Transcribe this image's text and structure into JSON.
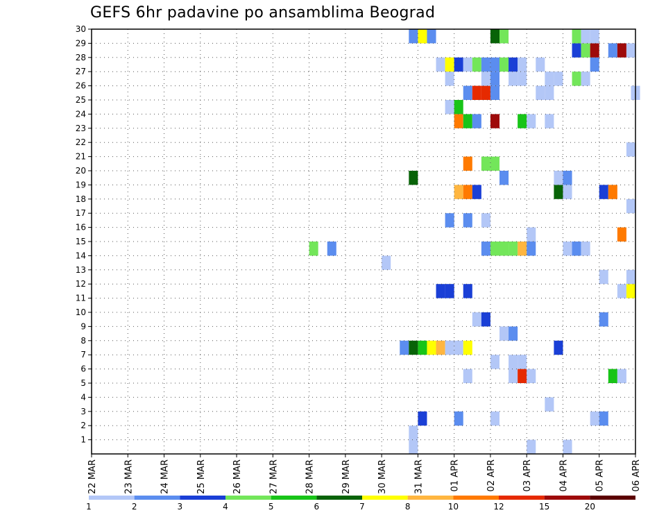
{
  "chart_data": {
    "type": "heatmap",
    "title": "GEFS 6hr padavine po ansamblima Beograd",
    "xlabel": "",
    "ylabel": "",
    "x_ticks": [
      "22 MAR",
      "23 MAR",
      "24 MAR",
      "25 MAR",
      "26 MAR",
      "27 MAR",
      "28 MAR",
      "29 MAR",
      "30 MAR",
      "31 MAR",
      "01 APR",
      "02 APR",
      "03 APR",
      "04 APR",
      "05 APR",
      "06 APR"
    ],
    "xlim": [
      0,
      15
    ],
    "y_ticks": [
      1,
      2,
      3,
      4,
      5,
      6,
      7,
      8,
      9,
      10,
      11,
      12,
      13,
      14,
      15,
      16,
      17,
      18,
      19,
      20,
      21,
      22,
      23,
      24,
      25,
      26,
      27,
      28,
      29,
      30
    ],
    "ylim": [
      0,
      30
    ],
    "grid": true,
    "legend_position": "bottom",
    "colorbar": {
      "labels": [
        "1",
        "2",
        "3",
        "4",
        "5",
        "6",
        "7",
        "8",
        "10",
        "12",
        "15",
        "20"
      ],
      "colors": [
        "#b3c7f7",
        "#5b8def",
        "#1a3fd6",
        "#73e65a",
        "#18c418",
        "#086308",
        "#ffff00",
        "#ffb640",
        "#ff7a00",
        "#e62a00",
        "#9e0a0a",
        "#5c0000"
      ]
    },
    "cells": [
      {
        "x": 8.75,
        "y": 0,
        "bin": 0
      },
      {
        "x": 12.0,
        "y": 0,
        "bin": 0
      },
      {
        "x": 13.0,
        "y": 0,
        "bin": 0
      },
      {
        "x": 13.75,
        "y": 2,
        "bin": 0
      },
      {
        "x": 8.75,
        "y": 1,
        "bin": 0
      },
      {
        "x": 9.0,
        "y": 2,
        "bin": 2
      },
      {
        "x": 10.0,
        "y": 2,
        "bin": 1
      },
      {
        "x": 11.0,
        "y": 2,
        "bin": 0
      },
      {
        "x": 14.0,
        "y": 2,
        "bin": 1
      },
      {
        "x": 12.5,
        "y": 3,
        "bin": 0
      },
      {
        "x": 10.25,
        "y": 5,
        "bin": 0
      },
      {
        "x": 11.5,
        "y": 5,
        "bin": 0
      },
      {
        "x": 11.75,
        "y": 5,
        "bin": 9
      },
      {
        "x": 12.0,
        "y": 5,
        "bin": 0
      },
      {
        "x": 14.25,
        "y": 5,
        "bin": 4
      },
      {
        "x": 14.5,
        "y": 5,
        "bin": 0
      },
      {
        "x": 11.0,
        "y": 6,
        "bin": 0
      },
      {
        "x": 11.5,
        "y": 6,
        "bin": 0
      },
      {
        "x": 11.75,
        "y": 6,
        "bin": 0
      },
      {
        "x": 8.5,
        "y": 7,
        "bin": 1
      },
      {
        "x": 8.75,
        "y": 7,
        "bin": 5
      },
      {
        "x": 9.0,
        "y": 7,
        "bin": 4
      },
      {
        "x": 9.25,
        "y": 7,
        "bin": 6
      },
      {
        "x": 9.5,
        "y": 7,
        "bin": 7
      },
      {
        "x": 9.75,
        "y": 7,
        "bin": 0
      },
      {
        "x": 10.0,
        "y": 7,
        "bin": 0
      },
      {
        "x": 10.25,
        "y": 7,
        "bin": 6
      },
      {
        "x": 12.75,
        "y": 7,
        "bin": 2
      },
      {
        "x": 11.25,
        "y": 8,
        "bin": 0
      },
      {
        "x": 11.5,
        "y": 8,
        "bin": 1
      },
      {
        "x": 10.5,
        "y": 9,
        "bin": 0
      },
      {
        "x": 10.75,
        "y": 9,
        "bin": 2
      },
      {
        "x": 14.0,
        "y": 9,
        "bin": 1
      },
      {
        "x": 9.5,
        "y": 11,
        "bin": 2
      },
      {
        "x": 9.75,
        "y": 11,
        "bin": 2
      },
      {
        "x": 10.25,
        "y": 11,
        "bin": 2
      },
      {
        "x": 14.5,
        "y": 11,
        "bin": 0
      },
      {
        "x": 14.75,
        "y": 11,
        "bin": 6
      },
      {
        "x": 14.0,
        "y": 12,
        "bin": 0
      },
      {
        "x": 14.75,
        "y": 12,
        "bin": 0
      },
      {
        "x": 8.0,
        "y": 13,
        "bin": 0
      },
      {
        "x": 6.0,
        "y": 14,
        "bin": 3
      },
      {
        "x": 6.5,
        "y": 14,
        "bin": 1
      },
      {
        "x": 10.75,
        "y": 14,
        "bin": 1
      },
      {
        "x": 11.0,
        "y": 14,
        "bin": 3
      },
      {
        "x": 11.25,
        "y": 14,
        "bin": 3
      },
      {
        "x": 11.5,
        "y": 14,
        "bin": 3
      },
      {
        "x": 11.75,
        "y": 14,
        "bin": 7
      },
      {
        "x": 12.0,
        "y": 14,
        "bin": 1
      },
      {
        "x": 13.0,
        "y": 14,
        "bin": 0
      },
      {
        "x": 13.25,
        "y": 14,
        "bin": 1
      },
      {
        "x": 13.5,
        "y": 14,
        "bin": 0
      },
      {
        "x": 12.0,
        "y": 15,
        "bin": 0
      },
      {
        "x": 14.5,
        "y": 15,
        "bin": 8
      },
      {
        "x": 9.75,
        "y": 16,
        "bin": 1
      },
      {
        "x": 10.25,
        "y": 16,
        "bin": 1
      },
      {
        "x": 10.75,
        "y": 16,
        "bin": 0
      },
      {
        "x": 14.75,
        "y": 17,
        "bin": 0
      },
      {
        "x": 10.0,
        "y": 18,
        "bin": 7
      },
      {
        "x": 10.25,
        "y": 18,
        "bin": 8
      },
      {
        "x": 10.5,
        "y": 18,
        "bin": 2
      },
      {
        "x": 12.75,
        "y": 18,
        "bin": 5
      },
      {
        "x": 13.0,
        "y": 18,
        "bin": 0
      },
      {
        "x": 14.0,
        "y": 18,
        "bin": 2
      },
      {
        "x": 14.25,
        "y": 18,
        "bin": 8
      },
      {
        "x": 8.75,
        "y": 19,
        "bin": 5
      },
      {
        "x": 11.25,
        "y": 19,
        "bin": 1
      },
      {
        "x": 12.75,
        "y": 19,
        "bin": 0
      },
      {
        "x": 13.0,
        "y": 19,
        "bin": 1
      },
      {
        "x": 10.25,
        "y": 20,
        "bin": 8
      },
      {
        "x": 10.75,
        "y": 20,
        "bin": 3
      },
      {
        "x": 11.0,
        "y": 20,
        "bin": 3
      },
      {
        "x": 14.75,
        "y": 21,
        "bin": 0
      },
      {
        "x": 10.0,
        "y": 23,
        "bin": 8
      },
      {
        "x": 10.25,
        "y": 23,
        "bin": 4
      },
      {
        "x": 10.5,
        "y": 23,
        "bin": 1
      },
      {
        "x": 11.0,
        "y": 23,
        "bin": 10
      },
      {
        "x": 11.75,
        "y": 23,
        "bin": 4
      },
      {
        "x": 12.0,
        "y": 23,
        "bin": 0
      },
      {
        "x": 12.5,
        "y": 23,
        "bin": 0
      },
      {
        "x": 9.75,
        "y": 24,
        "bin": 0
      },
      {
        "x": 10.0,
        "y": 24,
        "bin": 4
      },
      {
        "x": 10.25,
        "y": 25,
        "bin": 1
      },
      {
        "x": 10.5,
        "y": 25,
        "bin": 9
      },
      {
        "x": 10.75,
        "y": 25,
        "bin": 9
      },
      {
        "x": 11.0,
        "y": 25,
        "bin": 1
      },
      {
        "x": 12.25,
        "y": 25,
        "bin": 0
      },
      {
        "x": 12.5,
        "y": 25,
        "bin": 0
      },
      {
        "x": 14.875,
        "y": 25,
        "bin": 0
      },
      {
        "x": 9.75,
        "y": 26,
        "bin": 0
      },
      {
        "x": 10.75,
        "y": 26,
        "bin": 0
      },
      {
        "x": 11.0,
        "y": 26,
        "bin": 1
      },
      {
        "x": 11.5,
        "y": 26,
        "bin": 0
      },
      {
        "x": 11.75,
        "y": 26,
        "bin": 0
      },
      {
        "x": 12.5,
        "y": 26,
        "bin": 0
      },
      {
        "x": 12.75,
        "y": 26,
        "bin": 0
      },
      {
        "x": 13.25,
        "y": 26,
        "bin": 3
      },
      {
        "x": 13.5,
        "y": 26,
        "bin": 0
      },
      {
        "x": 9.5,
        "y": 27,
        "bin": 0
      },
      {
        "x": 9.75,
        "y": 27,
        "bin": 6
      },
      {
        "x": 10.0,
        "y": 27,
        "bin": 2
      },
      {
        "x": 10.25,
        "y": 27,
        "bin": 0
      },
      {
        "x": 10.5,
        "y": 27,
        "bin": 3
      },
      {
        "x": 10.75,
        "y": 27,
        "bin": 1
      },
      {
        "x": 11.0,
        "y": 27,
        "bin": 1
      },
      {
        "x": 11.25,
        "y": 27,
        "bin": 3
      },
      {
        "x": 11.5,
        "y": 27,
        "bin": 2
      },
      {
        "x": 11.75,
        "y": 27,
        "bin": 0
      },
      {
        "x": 12.25,
        "y": 27,
        "bin": 0
      },
      {
        "x": 13.75,
        "y": 27,
        "bin": 1
      },
      {
        "x": 13.25,
        "y": 28,
        "bin": 2
      },
      {
        "x": 13.5,
        "y": 28,
        "bin": 3
      },
      {
        "x": 13.75,
        "y": 28,
        "bin": 10
      },
      {
        "x": 14.25,
        "y": 28,
        "bin": 1
      },
      {
        "x": 14.5,
        "y": 28,
        "bin": 10
      },
      {
        "x": 14.75,
        "y": 28,
        "bin": 0
      },
      {
        "x": 8.75,
        "y": 29,
        "bin": 1
      },
      {
        "x": 9.0,
        "y": 29,
        "bin": 6
      },
      {
        "x": 9.25,
        "y": 29,
        "bin": 1
      },
      {
        "x": 11.0,
        "y": 29,
        "bin": 5
      },
      {
        "x": 11.25,
        "y": 29,
        "bin": 3
      },
      {
        "x": 13.25,
        "y": 29,
        "bin": 3
      },
      {
        "x": 13.5,
        "y": 29,
        "bin": 0
      },
      {
        "x": 13.75,
        "y": 29,
        "bin": 0
      }
    ]
  }
}
